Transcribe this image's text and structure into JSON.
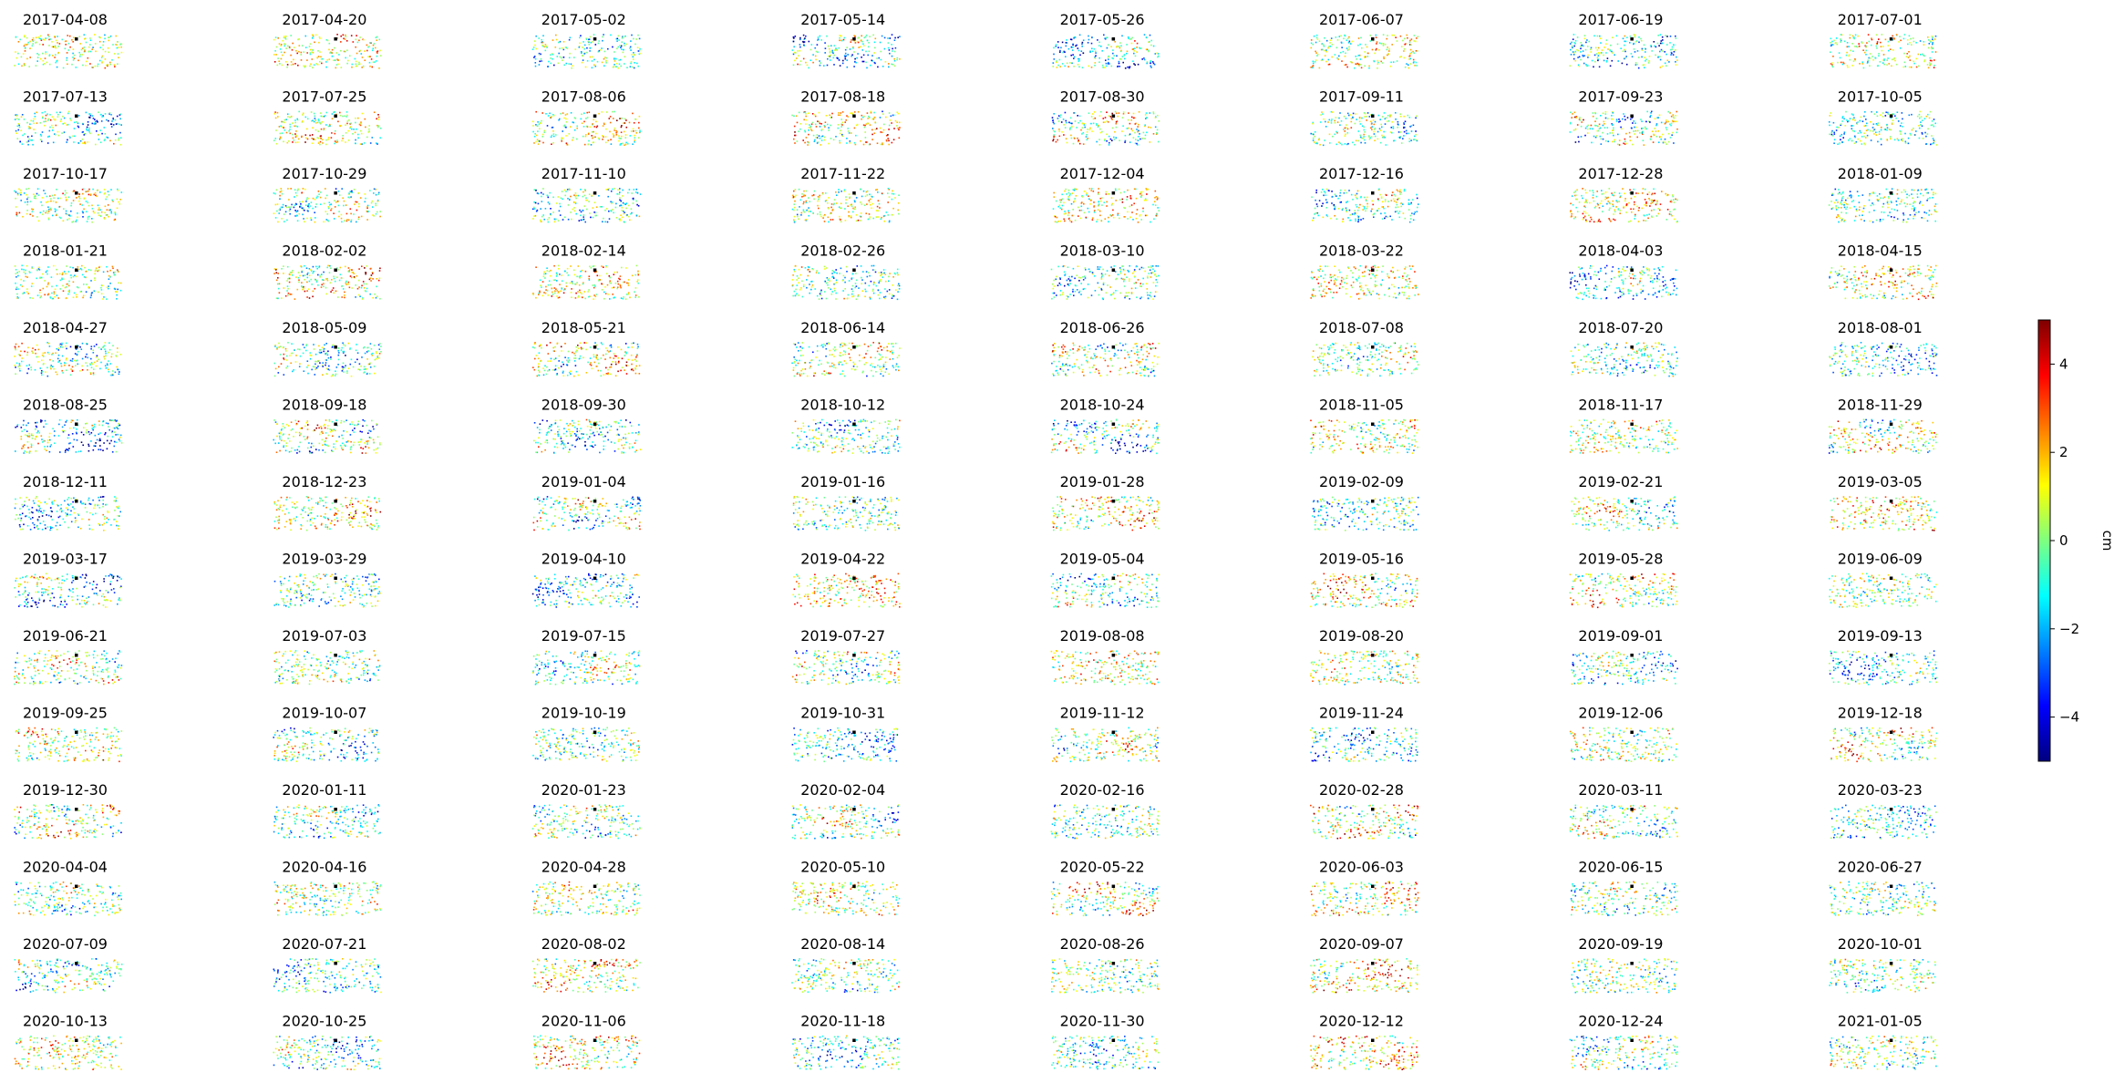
{
  "chart_data": {
    "type": "scatter",
    "kind": "displacement-map-time-series",
    "grid_columns": 8,
    "grid_rows": 14,
    "axes_visible": false,
    "reference_point_color": "#000000",
    "dates": [
      "2017-04-08",
      "2017-04-20",
      "2017-05-02",
      "2017-05-14",
      "2017-05-26",
      "2017-06-07",
      "2017-06-19",
      "2017-07-01",
      "2017-07-13",
      "2017-07-25",
      "2017-08-06",
      "2017-08-18",
      "2017-08-30",
      "2017-09-11",
      "2017-09-23",
      "2017-10-05",
      "2017-10-17",
      "2017-10-29",
      "2017-11-10",
      "2017-11-22",
      "2017-12-04",
      "2017-12-16",
      "2017-12-28",
      "2018-01-09",
      "2018-01-21",
      "2018-02-02",
      "2018-02-14",
      "2018-02-26",
      "2018-03-10",
      "2018-03-22",
      "2018-04-03",
      "2018-04-15",
      "2018-04-27",
      "2018-05-09",
      "2018-05-21",
      "2018-06-14",
      "2018-06-26",
      "2018-07-08",
      "2018-07-20",
      "2018-08-01",
      "2018-08-25",
      "2018-09-18",
      "2018-09-30",
      "2018-10-12",
      "2018-10-24",
      "2018-11-05",
      "2018-11-17",
      "2018-11-29",
      "2018-12-11",
      "2018-12-23",
      "2019-01-04",
      "2019-01-16",
      "2019-01-28",
      "2019-02-09",
      "2019-02-21",
      "2019-03-05",
      "2019-03-17",
      "2019-03-29",
      "2019-04-10",
      "2019-04-22",
      "2019-05-04",
      "2019-05-16",
      "2019-05-28",
      "2019-06-09",
      "2019-06-21",
      "2019-07-03",
      "2019-07-15",
      "2019-07-27",
      "2019-08-08",
      "2019-08-20",
      "2019-09-01",
      "2019-09-13",
      "2019-09-25",
      "2019-10-07",
      "2019-10-19",
      "2019-10-31",
      "2019-11-12",
      "2019-11-24",
      "2019-12-06",
      "2019-12-18",
      "2019-12-30",
      "2020-01-11",
      "2020-01-23",
      "2020-02-04",
      "2020-02-16",
      "2020-02-28",
      "2020-03-11",
      "2020-03-23",
      "2020-04-04",
      "2020-04-16",
      "2020-04-28",
      "2020-05-10",
      "2020-05-22",
      "2020-06-03",
      "2020-06-15",
      "2020-06-27",
      "2020-07-09",
      "2020-07-21",
      "2020-08-02",
      "2020-08-14",
      "2020-08-26",
      "2020-09-07",
      "2020-09-19",
      "2020-10-01",
      "2020-10-13",
      "2020-10-25",
      "2020-11-06",
      "2020-11-18",
      "2020-11-30",
      "2020-12-12",
      "2020-12-24",
      "2021-01-05"
    ],
    "colorbar": {
      "label": "cm",
      "colormap": "jet",
      "range": [
        -5,
        5
      ],
      "ticks": [
        -4,
        -2,
        0,
        2,
        4
      ],
      "tick_labels": [
        "−4",
        "−2",
        "0",
        "2",
        "4"
      ],
      "colors": [
        "#00007f",
        "#0000ff",
        "#007fff",
        "#00ffff",
        "#7fff7f",
        "#ffff00",
        "#ff7f00",
        "#ff0000",
        "#7f0000"
      ]
    }
  }
}
